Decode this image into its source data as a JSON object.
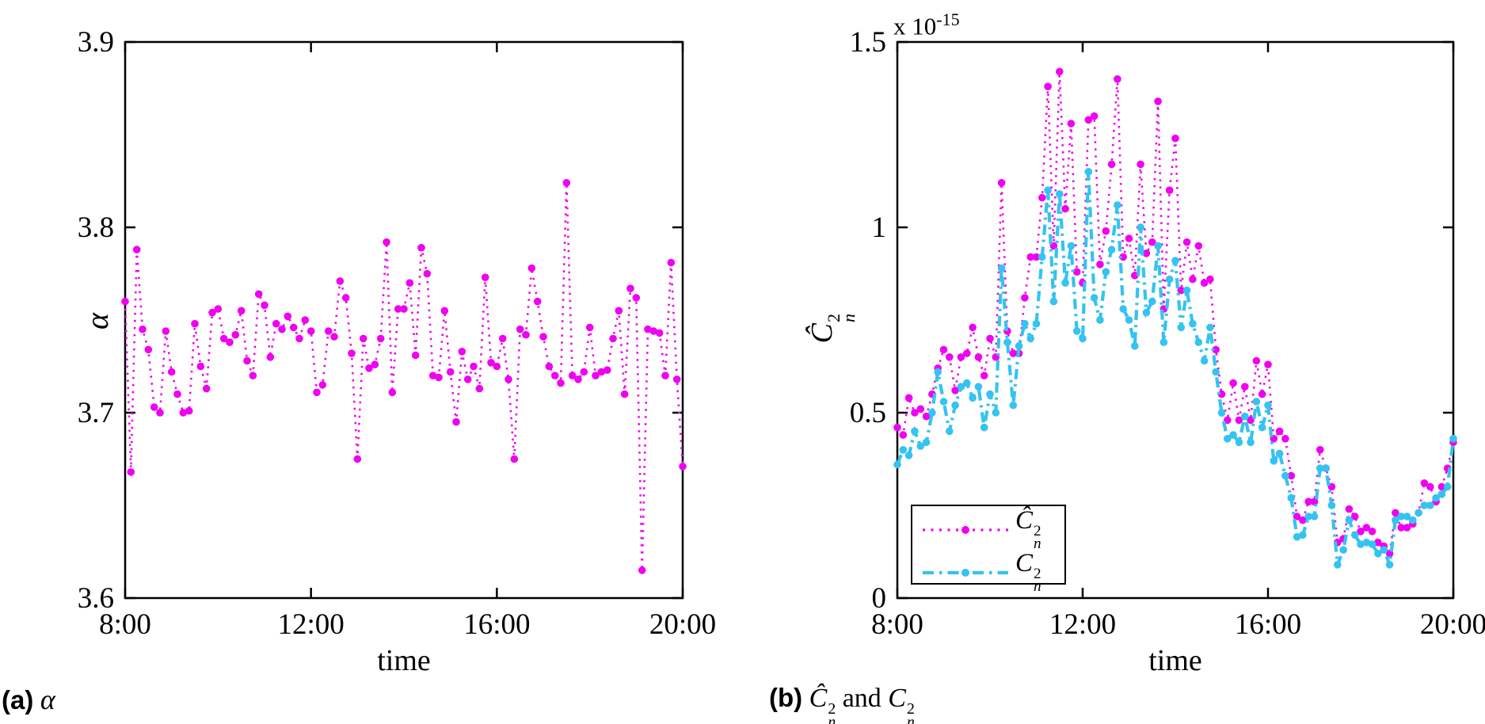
{
  "colors": {
    "magenta": "#F000F0",
    "cyan": "#35C3F0",
    "axis": "#000000",
    "background": "#ffffff"
  },
  "math": {
    "c_hat": "Ĉ",
    "c": "C",
    "sup": "2",
    "sub": "n",
    "alpha": "α"
  },
  "panel_a": {
    "xlabel": "time",
    "ylabel": "α",
    "caption_prefix": "(a)",
    "caption_math": "α"
  },
  "panel_b": {
    "xlabel": "time",
    "exponent_base": "x 10",
    "exponent_power": "-15",
    "caption_prefix": "(b)",
    "caption_and": "and"
  },
  "legend": {
    "entry1_name": "Cn2-hat-estimate",
    "entry2_name": "Cn2-scintillometer"
  },
  "chart_data": [
    {
      "type": "line",
      "panel": "a",
      "xlabel": "time",
      "ylabel": "alpha",
      "xlim": [
        8,
        20
      ],
      "ylim": [
        3.6,
        3.9
      ],
      "grid": false,
      "x_ticks": [
        {
          "v": 8,
          "label": "8:00"
        },
        {
          "v": 12,
          "label": "12:00"
        },
        {
          "v": 16,
          "label": "16:00"
        },
        {
          "v": 20,
          "label": "20:00"
        }
      ],
      "y_ticks": [
        {
          "v": 3.6,
          "label": "3.6"
        },
        {
          "v": 3.7,
          "label": "3.7"
        },
        {
          "v": 3.8,
          "label": "3.8"
        },
        {
          "v": 3.9,
          "label": "3.9"
        }
      ],
      "x_start": 8,
      "x_step": 0.125,
      "series": [
        {
          "name": "alpha",
          "color_key": "magenta",
          "line": "dotted",
          "marker": "dot",
          "values": [
            3.76,
            3.668,
            3.788,
            3.745,
            3.734,
            3.703,
            3.7,
            3.744,
            3.722,
            3.71,
            3.7,
            3.701,
            3.748,
            3.725,
            3.713,
            3.754,
            3.756,
            3.74,
            3.738,
            3.742,
            3.755,
            3.728,
            3.72,
            3.764,
            3.758,
            3.73,
            3.748,
            3.745,
            3.752,
            3.746,
            3.74,
            3.75,
            3.744,
            3.711,
            3.715,
            3.744,
            3.741,
            3.771,
            3.762,
            3.732,
            3.675,
            3.74,
            3.724,
            3.726,
            3.74,
            3.792,
            3.711,
            3.756,
            3.756,
            3.77,
            3.731,
            3.789,
            3.775,
            3.72,
            3.719,
            3.755,
            3.722,
            3.695,
            3.733,
            3.718,
            3.725,
            3.713,
            3.773,
            3.727,
            3.725,
            3.74,
            3.718,
            3.675,
            3.745,
            3.742,
            3.778,
            3.76,
            3.741,
            3.725,
            3.72,
            3.716,
            3.824,
            3.72,
            3.718,
            3.722,
            3.746,
            3.72,
            3.722,
            3.723,
            3.74,
            3.755,
            3.71,
            3.767,
            3.762,
            3.615,
            3.745,
            3.744,
            3.743,
            3.72,
            3.781,
            3.718,
            3.671
          ]
        }
      ]
    },
    {
      "type": "line",
      "panel": "b",
      "xlabel": "time",
      "ylabel": "Cn2-hat",
      "exponent": "x 10^-15",
      "xlim": [
        8,
        20
      ],
      "ylim": [
        0,
        1.5
      ],
      "grid": false,
      "legend_position": "bottom-left",
      "x_ticks": [
        {
          "v": 8,
          "label": "8:00"
        },
        {
          "v": 12,
          "label": "12:00"
        },
        {
          "v": 16,
          "label": "16:00"
        },
        {
          "v": 20,
          "label": "20:00"
        }
      ],
      "y_ticks": [
        {
          "v": 0,
          "label": "0"
        },
        {
          "v": 0.5,
          "label": "0.5"
        },
        {
          "v": 1,
          "label": "1"
        },
        {
          "v": 1.5,
          "label": "1.5"
        }
      ],
      "x_start": 8,
      "x_step": 0.125,
      "series": [
        {
          "name": "Cn2-hat-estimate",
          "color_key": "magenta",
          "line": "dotted",
          "marker": "dot",
          "values": [
            0.46,
            0.44,
            0.54,
            0.5,
            0.51,
            0.49,
            0.55,
            0.62,
            0.67,
            0.65,
            0.56,
            0.65,
            0.66,
            0.73,
            0.65,
            0.6,
            0.7,
            0.65,
            1.12,
            0.72,
            0.66,
            0.66,
            0.81,
            0.92,
            0.92,
            1.08,
            1.38,
            0.95,
            1.42,
            1.05,
            1.28,
            0.88,
            0.85,
            1.29,
            1.3,
            0.9,
            0.99,
            1.17,
            1.4,
            0.92,
            0.97,
            0.87,
            1.17,
            0.93,
            0.96,
            1.34,
            0.78,
            1.1,
            1.24,
            0.83,
            0.96,
            0.86,
            0.95,
            0.85,
            0.86,
            0.67,
            0.55,
            0.48,
            0.58,
            0.48,
            0.57,
            0.48,
            0.64,
            0.55,
            0.63,
            0.43,
            0.45,
            0.43,
            0.33,
            0.22,
            0.21,
            0.26,
            0.26,
            0.4,
            0.35,
            0.3,
            0.15,
            0.16,
            0.24,
            0.22,
            0.18,
            0.19,
            0.18,
            0.15,
            0.14,
            0.12,
            0.23,
            0.19,
            0.19,
            0.2,
            0.23,
            0.31,
            0.3,
            0.26,
            0.3,
            0.35,
            0.42
          ]
        },
        {
          "name": "Cn2-scintillometer",
          "color_key": "cyan",
          "line": "dashdot",
          "marker": "dot",
          "values": [
            0.36,
            0.4,
            0.385,
            0.45,
            0.41,
            0.42,
            0.5,
            0.61,
            0.53,
            0.45,
            0.52,
            0.57,
            0.58,
            0.54,
            0.57,
            0.46,
            0.55,
            0.5,
            0.89,
            0.69,
            0.52,
            0.68,
            0.74,
            0.7,
            0.74,
            0.92,
            1.1,
            0.8,
            1.09,
            0.85,
            0.95,
            0.72,
            0.7,
            1.15,
            0.81,
            0.75,
            0.88,
            0.94,
            1.06,
            0.78,
            0.75,
            0.68,
            1.0,
            0.77,
            0.8,
            0.95,
            0.69,
            0.86,
            0.91,
            0.73,
            0.83,
            0.74,
            0.69,
            0.64,
            0.73,
            0.61,
            0.5,
            0.43,
            0.44,
            0.42,
            0.49,
            0.42,
            0.53,
            0.46,
            0.52,
            0.37,
            0.39,
            0.33,
            0.27,
            0.165,
            0.17,
            0.22,
            0.22,
            0.35,
            0.35,
            0.25,
            0.09,
            0.13,
            0.21,
            0.17,
            0.145,
            0.15,
            0.145,
            0.12,
            0.13,
            0.09,
            0.21,
            0.22,
            0.22,
            0.21,
            0.23,
            0.25,
            0.25,
            0.27,
            0.28,
            0.3,
            0.43
          ]
        }
      ]
    }
  ]
}
